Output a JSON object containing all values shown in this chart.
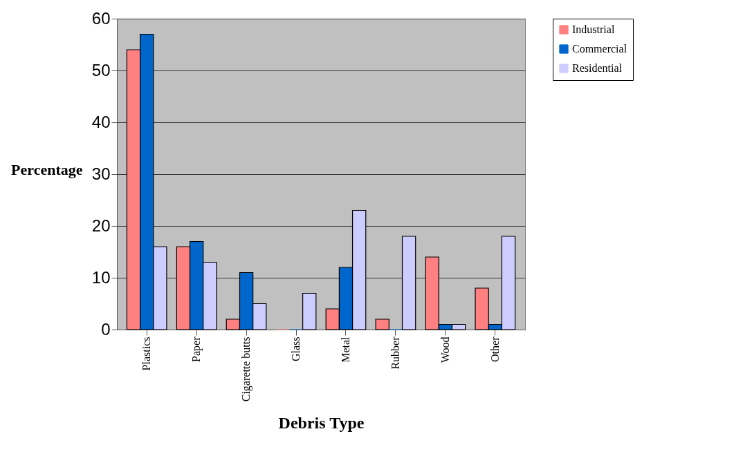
{
  "chart_data": {
    "type": "bar",
    "xlabel": "Debris Type",
    "ylabel": "Percentage",
    "categories": [
      "Plastics",
      "Paper",
      "Cigarette butts",
      "Glass",
      "Metal",
      "Rubber",
      "Wood",
      "Other"
    ],
    "series": [
      {
        "name": "Industrial",
        "color": "#ff8080",
        "values": [
          54,
          16,
          2,
          0,
          4,
          2,
          14,
          8
        ]
      },
      {
        "name": "Commercial",
        "color": "#0066cc",
        "values": [
          57,
          17,
          11,
          0,
          12,
          0,
          1,
          1
        ]
      },
      {
        "name": "Residential",
        "color": "#ccccff",
        "values": [
          16,
          13,
          5,
          7,
          23,
          18,
          1,
          18
        ]
      }
    ],
    "ylim": [
      0,
      60
    ],
    "yticks": [
      0,
      10,
      20,
      30,
      40,
      50,
      60
    ],
    "grid": "y",
    "legend": "right"
  }
}
